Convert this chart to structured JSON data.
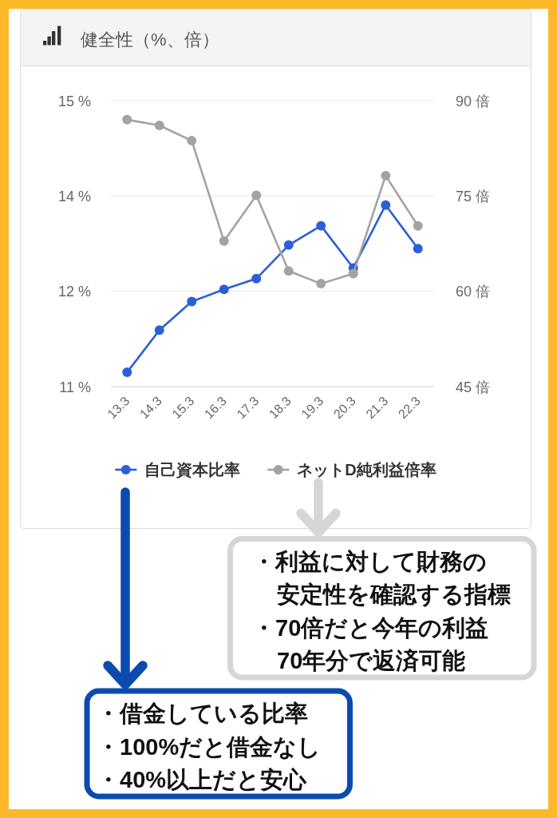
{
  "chart_data": {
    "type": "line",
    "title": "健全性（%、倍）",
    "categories": [
      "13.3",
      "14.3",
      "15.3",
      "16.3",
      "17.3",
      "18.3",
      "19.3",
      "20.3",
      "21.3",
      "22.3"
    ],
    "series": [
      {
        "name": "自己資本比率",
        "color": "#2c5fd5",
        "values": [
          11.2,
          11.79,
          12.19,
          12.36,
          12.51,
          12.98,
          13.25,
          12.66,
          13.54,
          12.93
        ]
      },
      {
        "name": "ネットD純利益倍率",
        "color": "#a3a3a3",
        "axis": "y2",
        "values": [
          87.0,
          86.1,
          83.7,
          67.9,
          75.1,
          63.2,
          61.2,
          62.8,
          78.2,
          70.3
        ]
      }
    ],
    "ylim": [
      11,
      15
    ],
    "yticks": [
      {
        "value": 11,
        "label": "11 %"
      },
      {
        "value": 12.333,
        "label": "12 %"
      },
      {
        "value": 13.667,
        "label": "14 %"
      },
      {
        "value": 15,
        "label": "15 %"
      }
    ],
    "y2lim": [
      45,
      90
    ],
    "y2ticks": [
      {
        "value": 45,
        "label": "45 倍"
      },
      {
        "value": 60,
        "label": "60 倍"
      },
      {
        "value": 75,
        "label": "75 倍"
      },
      {
        "value": 90,
        "label": "90 倍"
      }
    ],
    "grid": "y",
    "legend": "bottom",
    "marker": "circle",
    "line_style": "solid",
    "annotations": [
      "・利益に対して財務の安定性を確認する指標",
      "・70倍だと今年の利益70年分で返済可能",
      "・借金している比率",
      "・100%だと借金なし",
      "・40%以上だと安心"
    ]
  }
}
